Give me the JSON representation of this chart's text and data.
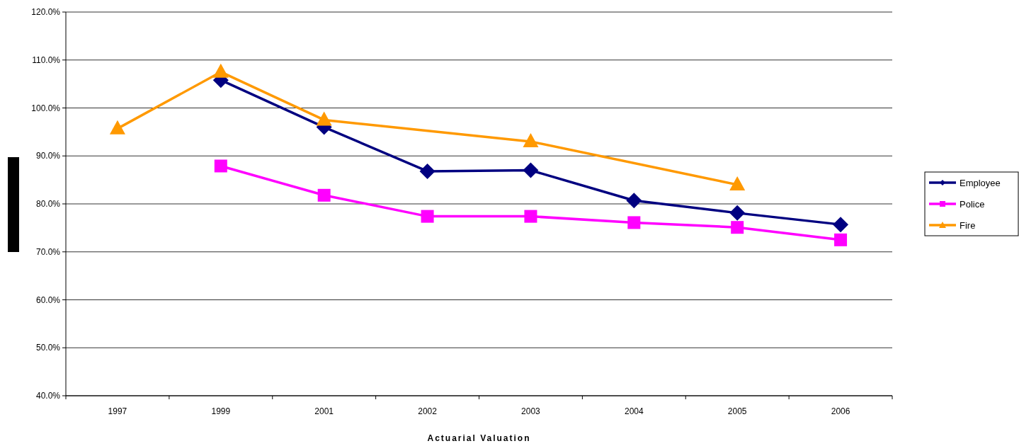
{
  "chart_data": {
    "type": "line",
    "xlabel": "Actuarial Valuation",
    "categories": [
      "1997",
      "1999",
      "2001",
      "2002",
      "2003",
      "2004",
      "2005",
      "2006"
    ],
    "series": [
      {
        "name": "Employee",
        "color": "#000080",
        "marker": "diamond",
        "values": [
          null,
          105.8,
          96,
          86.8,
          87,
          80.7,
          78.1,
          75.7
        ]
      },
      {
        "name": "Police",
        "color": "#ff00ff",
        "marker": "square",
        "values": [
          null,
          87.9,
          81.8,
          77.4,
          77.4,
          76.1,
          75.1,
          72.5
        ]
      },
      {
        "name": "Fire",
        "color": "#ff9900",
        "marker": "triangle",
        "values": [
          95.7,
          107.5,
          97.5,
          null,
          93,
          null,
          84,
          null
        ]
      }
    ],
    "ylim": [
      40,
      120
    ],
    "yticks": [
      {
        "value": 40,
        "label": "40.0%"
      },
      {
        "value": 50,
        "label": "50.0%"
      },
      {
        "value": 60,
        "label": "60.0%"
      },
      {
        "value": 70,
        "label": "70.0%"
      },
      {
        "value": 80,
        "label": "80.0%"
      },
      {
        "value": 90,
        "label": "90.0%"
      },
      {
        "value": 100,
        "label": "100.0%"
      },
      {
        "value": 110,
        "label": "110.0%"
      },
      {
        "value": 120,
        "label": "120.0%"
      }
    ],
    "grid": "y",
    "legend": "right",
    "line_style": "solid"
  }
}
